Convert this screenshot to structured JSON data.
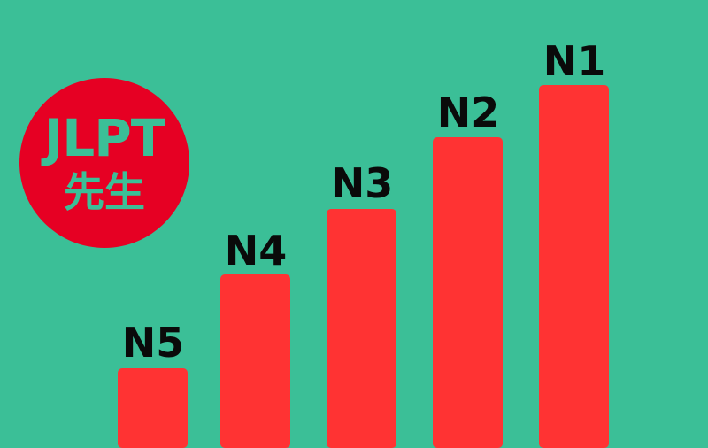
{
  "logo": {
    "line1": "JLPT",
    "line2": "先生"
  },
  "levels": [
    {
      "label": "N5",
      "rank": 1
    },
    {
      "label": "N4",
      "rank": 2
    },
    {
      "label": "N3",
      "rank": 3
    },
    {
      "label": "N2",
      "rank": 4
    },
    {
      "label": "N1",
      "rank": 5
    }
  ],
  "colors": {
    "background": "#3bbf97",
    "bar": "#ff3333",
    "logo": "#e60023",
    "label": "#0a0a0a"
  }
}
